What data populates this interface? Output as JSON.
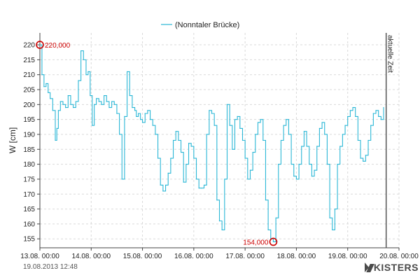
{
  "legend": {
    "label": "(Nonntaler Brücke)"
  },
  "now_marker": {
    "label": "aktuelle Zeit",
    "x": 6.75
  },
  "footer": {
    "timestamp": "19.08.2013  12:48",
    "brand": "KISTERS"
  },
  "annotations": {
    "max_label": "220,000",
    "min_label": "154,000"
  },
  "colors": {
    "series": "#2bb7d6",
    "annotation": "#cc0000",
    "grid": "#d9d9d9",
    "now_line": "#555555"
  },
  "icons": {
    "brand_logo": "kisters-k-logo"
  },
  "chart_data": {
    "type": "line",
    "xlabel": "",
    "ylabel": "W [cm]",
    "x_ticks": [
      "13.08. 00:00",
      "14.08. 00:00",
      "15.08. 00:00",
      "16.08. 00:00",
      "17.08. 00:00",
      "18.08. 00:00",
      "19.08. 00:00",
      "20.08. 00:00"
    ],
    "y_ticks": [
      155,
      160,
      165,
      170,
      175,
      180,
      185,
      190,
      195,
      200,
      205,
      210,
      215,
      220
    ],
    "xlim": [
      0,
      7
    ],
    "ylim": [
      152,
      224
    ],
    "x_unit": "days after 13.08. 00:00",
    "grid": true,
    "legend_position": "top-center",
    "series": [
      {
        "name": "(Nonntaler Brücke)",
        "x": [
          0,
          0.04,
          0.08,
          0.12,
          0.16,
          0.2,
          0.25,
          0.3,
          0.33,
          0.36,
          0.4,
          0.45,
          0.5,
          0.55,
          0.6,
          0.65,
          0.7,
          0.75,
          0.8,
          0.85,
          0.9,
          0.94,
          0.98,
          1.02,
          1.06,
          1.1,
          1.15,
          1.2,
          1.25,
          1.3,
          1.35,
          1.4,
          1.45,
          1.5,
          1.55,
          1.6,
          1.65,
          1.7,
          1.75,
          1.8,
          1.85,
          1.88,
          1.92,
          1.96,
          2.0,
          2.05,
          2.1,
          2.15,
          2.2,
          2.25,
          2.3,
          2.35,
          2.4,
          2.45,
          2.5,
          2.55,
          2.6,
          2.65,
          2.7,
          2.75,
          2.8,
          2.85,
          2.9,
          2.95,
          3.0,
          3.05,
          3.1,
          3.15,
          3.2,
          3.25,
          3.3,
          3.35,
          3.4,
          3.45,
          3.5,
          3.55,
          3.6,
          3.65,
          3.7,
          3.75,
          3.8,
          3.85,
          3.9,
          3.95,
          4.0,
          4.05,
          4.1,
          4.15,
          4.2,
          4.25,
          4.3,
          4.35,
          4.4,
          4.45,
          4.5,
          4.55,
          4.6,
          4.65,
          4.7,
          4.75,
          4.8,
          4.85,
          4.9,
          4.95,
          5.0,
          5.05,
          5.1,
          5.15,
          5.2,
          5.25,
          5.3,
          5.35,
          5.4,
          5.45,
          5.5,
          5.55,
          5.6,
          5.65,
          5.7,
          5.75,
          5.8,
          5.85,
          5.9,
          5.95,
          6.0,
          6.05,
          6.1,
          6.15,
          6.2,
          6.25,
          6.3,
          6.35,
          6.4,
          6.45,
          6.5,
          6.55,
          6.6,
          6.65,
          6.7
        ],
        "values": [
          220,
          210,
          206,
          207,
          204,
          202,
          198,
          188,
          192,
          198,
          201,
          200,
          199,
          203,
          200,
          199,
          201,
          208,
          218,
          215,
          210,
          211,
          203,
          193,
          200,
          202,
          201,
          200,
          203,
          201,
          199,
          201,
          200,
          197,
          190,
          175,
          196,
          211,
          203,
          199,
          198,
          196,
          197,
          195,
          194,
          197,
          198,
          195,
          193,
          190,
          182,
          173,
          171,
          173,
          177,
          182,
          188,
          191,
          188,
          184,
          174,
          180,
          187,
          186,
          182,
          175,
          172,
          172,
          173,
          190,
          198,
          197,
          193,
          168,
          161,
          158,
          175,
          200,
          193,
          185,
          195,
          196,
          192,
          188,
          182,
          175,
          178,
          184,
          190,
          194,
          195,
          188,
          168,
          158,
          155,
          154,
          162,
          180,
          188,
          193,
          195,
          190,
          180,
          176,
          175,
          180,
          186,
          191,
          186,
          180,
          176,
          178,
          186,
          192,
          194,
          190,
          180,
          162,
          158,
          165,
          180,
          186,
          190,
          193,
          196,
          198,
          199,
          196,
          188,
          182,
          181,
          183,
          188,
          193,
          197,
          198,
          196,
          195,
          199
        ]
      }
    ]
  }
}
